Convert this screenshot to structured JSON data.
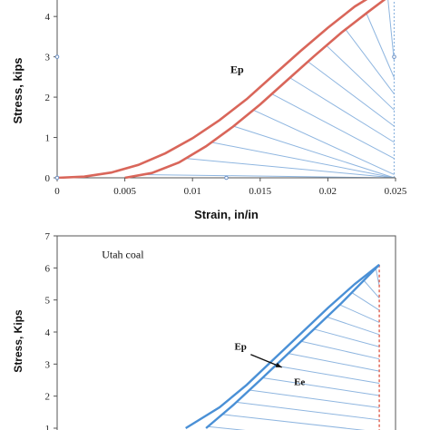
{
  "chart_data": [
    {
      "type": "line",
      "title": "",
      "xlabel": "Strain, in/in",
      "ylabel": "Stress, kips",
      "xlim": [
        0,
        0.025
      ],
      "ylim": [
        0,
        4.6
      ],
      "x_ticks": [
        0,
        0.005,
        0.01,
        0.015,
        0.02,
        0.025
      ],
      "x_tick_labels": [
        "0",
        "0.005",
        "0.01",
        "0.015",
        "0.02",
        "0.025"
      ],
      "y_ticks": [
        0,
        1,
        2,
        3,
        4
      ],
      "y_tick_labels": [
        "0",
        "1",
        "2",
        "3",
        "4"
      ],
      "grid": false,
      "line_color": "#d9665a",
      "hatch_color": "#8fb6e0",
      "annotations": [
        {
          "text": "Ep",
          "x": 0.0128,
          "y": 2.6
        }
      ],
      "series": [
        {
          "name": "",
          "x": [
            0,
            0.002,
            0.004,
            0.006,
            0.008,
            0.01,
            0.012,
            0.014,
            0.016,
            0.018,
            0.02,
            0.022,
            0.0237
          ],
          "y": [
            0,
            0.03,
            0.13,
            0.32,
            0.61,
            0.98,
            1.43,
            1.95,
            2.55,
            3.15,
            3.72,
            4.25,
            4.6
          ]
        },
        {
          "name": "",
          "x": [
            0.005,
            0.007,
            0.009,
            0.011,
            0.013,
            0.015,
            0.017,
            0.019,
            0.021,
            0.023,
            0.0249
          ],
          "y": [
            0,
            0.12,
            0.38,
            0.78,
            1.27,
            1.82,
            2.42,
            3.02,
            3.6,
            4.12,
            4.6
          ]
        }
      ],
      "recovery_line_x": 0.0249
    },
    {
      "type": "line",
      "title": "",
      "xlabel": "",
      "ylabel": "Stress, Kips",
      "xlim": [
        0,
        0.025
      ],
      "ylim": [
        1,
        7
      ],
      "y_ticks": [
        1,
        2,
        3,
        4,
        5,
        6,
        7
      ],
      "y_tick_labels": [
        "1",
        "2",
        "3",
        "4",
        "5",
        "6",
        "7"
      ],
      "grid": false,
      "line_color": "#4a90d6",
      "hatch_color": "#8fb6e0",
      "drop_line_color": "#e0604f",
      "annotations": [
        {
          "text": "Utah coal",
          "x": 0.0033,
          "y": 6.3
        },
        {
          "text": "Ep",
          "x": 0.0131,
          "y": 3.45
        },
        {
          "text": "Ee",
          "x": 0.0175,
          "y": 2.35
        }
      ],
      "series": [
        {
          "name": "",
          "x": [
            0.0095,
            0.012,
            0.014,
            0.016,
            0.018,
            0.02,
            0.022,
            0.0238
          ],
          "y": [
            1,
            1.65,
            2.35,
            3.15,
            3.95,
            4.75,
            5.5,
            6.1
          ]
        },
        {
          "name": "",
          "x": [
            0.011,
            0.013,
            0.015,
            0.017,
            0.019,
            0.021,
            0.0238
          ],
          "y": [
            1,
            1.72,
            2.5,
            3.3,
            4.1,
            4.9,
            6.1
          ]
        }
      ],
      "peak": {
        "x": 0.0238,
        "y": 6.1
      }
    }
  ]
}
